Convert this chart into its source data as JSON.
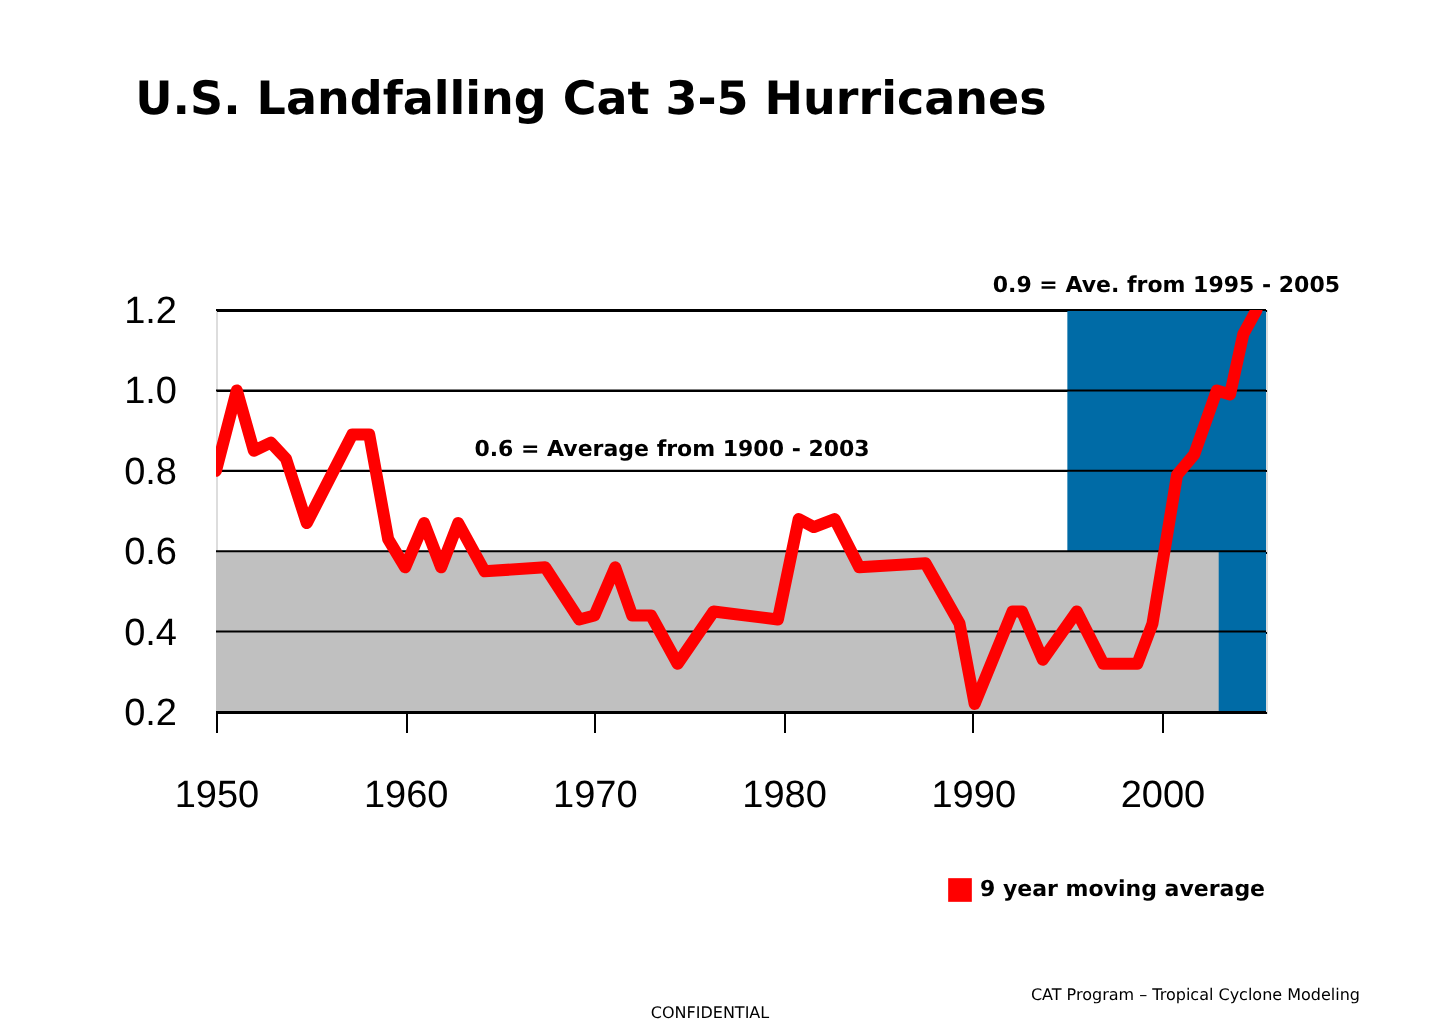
{
  "chart_data": {
    "type": "line",
    "title": "U.S. Landfalling Cat 3-5 Hurricanes",
    "series": [
      {
        "type": "area",
        "color": "#006ba6",
        "x": [
          1995,
          2005.5
        ],
        "values": [
          1.2,
          1.2
        ]
      },
      {
        "type": "area",
        "color": "#c0c0c0",
        "x": [
          1950,
          2003
        ],
        "values": [
          0.6,
          0.6
        ]
      },
      {
        "name": "9 year moving average",
        "color": "#ff0000",
        "x": [
          1950,
          1951.1,
          1952,
          1952.9,
          1953.7,
          1954.8,
          1956,
          1957.2,
          1958.1,
          1959.1,
          1960,
          1961,
          1961.9,
          1962.8,
          1964.2,
          1967.4,
          1969.2,
          1970,
          1971.1,
          1972,
          1973,
          1974.4,
          1976.3,
          1979.7,
          1980.8,
          1981.6,
          1982.7,
          1984,
          1987.5,
          1989.3,
          1990.1,
          1992.1,
          1992.6,
          1993.7,
          1995.5,
          1996.9,
          1998.7,
          1999.5,
          2000.8,
          2001.7,
          2002.9,
          2003.6,
          2004.3,
          2005
        ],
        "values": [
          0.8,
          1.0,
          0.85,
          0.87,
          0.83,
          0.67,
          0.78,
          0.89,
          0.89,
          0.63,
          0.56,
          0.67,
          0.56,
          0.67,
          0.55,
          0.56,
          0.43,
          0.44,
          0.56,
          0.44,
          0.44,
          0.32,
          0.45,
          0.43,
          0.68,
          0.66,
          0.68,
          0.56,
          0.57,
          0.42,
          0.22,
          0.45,
          0.45,
          0.33,
          0.45,
          0.32,
          0.32,
          0.42,
          0.79,
          0.84,
          1.0,
          0.99,
          1.14,
          1.2
        ]
      }
    ],
    "xlim": [
      1950,
      2005.5
    ],
    "xticks": [
      1950,
      1960,
      1970,
      1980,
      1990,
      2000
    ],
    "ylim": [
      0.2,
      1.2
    ],
    "yticks": [
      {
        "value": 0.2,
        "label": "0.2"
      },
      {
        "value": 0.4,
        "label": "0.4"
      },
      {
        "value": 0.6,
        "label": "0.6"
      },
      {
        "value": 0.8,
        "label": "0.8"
      },
      {
        "value": 1.0,
        "label": "1.0"
      },
      {
        "value": 1.2,
        "label": "1.2"
      }
    ],
    "grid": "y",
    "legend": "bottom right",
    "line_style": "solid",
    "marker": "none",
    "annotations": [
      "0.6 = Average from 1900 - 2003",
      "0.9 = Ave. from 1995 - 2005",
      "CONFIDENTIAL",
      "CAT Program – Tropical Cyclone Modeling"
    ]
  }
}
